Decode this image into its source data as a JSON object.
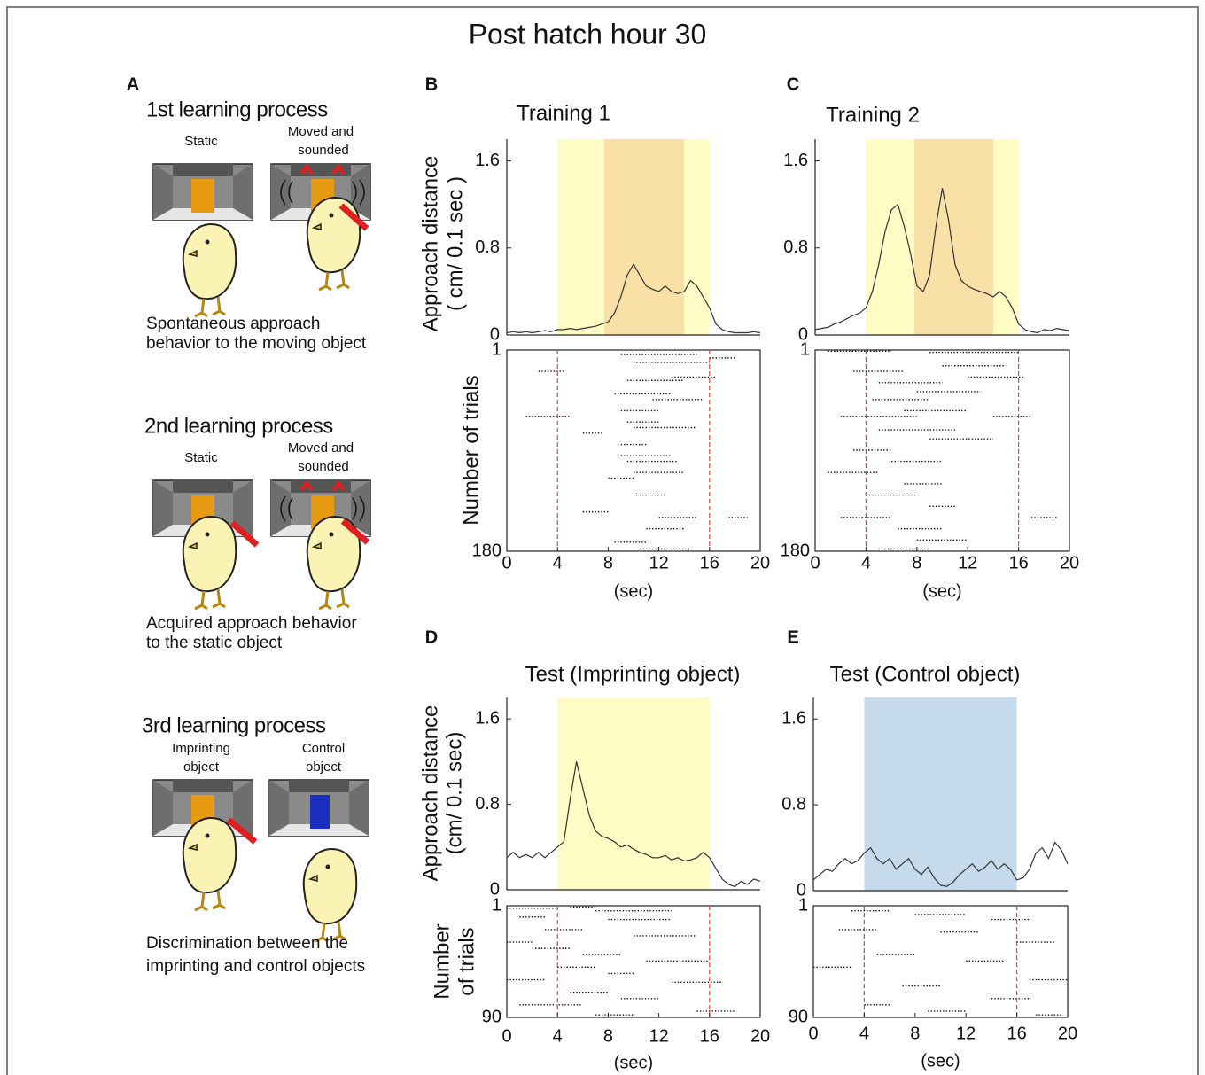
{
  "title": "Post hatch hour 30",
  "panel_a": {
    "label": "A",
    "steps": [
      {
        "title": "1st learning process",
        "left_label": [
          "Static"
        ],
        "right_label": [
          "Moved and",
          "sounded"
        ],
        "caption": [
          "Spontaneous approach",
          "behavior to the moving object"
        ]
      },
      {
        "title": "2nd learning process",
        "left_label": [
          "Static"
        ],
        "right_label": [
          "Moved and",
          "sounded"
        ],
        "caption": [
          "Acquired approach behavior",
          "to the static object"
        ]
      },
      {
        "title": "3rd learning process",
        "left_label": [
          "Imprinting",
          "object"
        ],
        "right_label": [
          "Control",
          "object"
        ],
        "caption": [
          "Discrimination between the",
          "imprinting and control objects"
        ]
      }
    ]
  },
  "chart_data": [
    {
      "type": "line",
      "label": "B",
      "title": "Training 1",
      "ylabel": [
        "Approach distance",
        "( cm/ 0.1 sec )"
      ],
      "x": [
        0,
        0.5,
        1,
        1.5,
        2,
        2.5,
        3,
        3.5,
        4,
        4.5,
        5,
        5.5,
        6,
        6.5,
        7,
        7.5,
        8,
        8.5,
        9,
        9.5,
        10,
        10.5,
        11,
        11.5,
        12,
        12.5,
        13,
        13.5,
        14,
        14.5,
        15,
        15.5,
        16,
        16.5,
        17,
        17.5,
        18,
        18.5,
        19,
        19.5,
        20
      ],
      "values": [
        0.02,
        0.03,
        0.02,
        0.03,
        0.02,
        0.03,
        0.04,
        0.03,
        0.05,
        0.05,
        0.06,
        0.05,
        0.06,
        0.07,
        0.08,
        0.1,
        0.12,
        0.2,
        0.35,
        0.55,
        0.65,
        0.55,
        0.45,
        0.42,
        0.4,
        0.45,
        0.4,
        0.38,
        0.4,
        0.5,
        0.45,
        0.35,
        0.25,
        0.1,
        0.05,
        0.03,
        0.02,
        0.02,
        0.02,
        0.03,
        0.02
      ],
      "color": "#333333",
      "xlim": [
        0,
        20
      ],
      "ylim": [
        0,
        1.8
      ],
      "yticks": [
        0,
        0.8,
        1.6
      ],
      "bands": [
        {
          "x": [
            4,
            16
          ],
          "color": "#fffbc4"
        },
        {
          "x": [
            7.7,
            14
          ],
          "color": "#f9e0a6"
        }
      ],
      "raster": {
        "ylabel": [
          "Number of trials"
        ],
        "ylim": [
          1,
          180
        ],
        "yticks": [
          1,
          180
        ],
        "xticks": [
          0,
          4,
          8,
          12,
          16,
          20
        ],
        "xlabel": "(sec)",
        "markers": [
          4,
          16
        ],
        "marker_color": "#e8403a",
        "events": [
          [
            9,
            15,
            5
          ],
          [
            10,
            16,
            12
          ],
          [
            2.5,
            4.5,
            20
          ],
          [
            9.5,
            14,
            28
          ],
          [
            8.5,
            13,
            40
          ],
          [
            1.5,
            5,
            60
          ],
          [
            9,
            12,
            55
          ],
          [
            10,
            15,
            70
          ],
          [
            9,
            11,
            85
          ],
          [
            6,
            7.5,
            75
          ],
          [
            9.5,
            13.5,
            100
          ],
          [
            8,
            10,
            115
          ],
          [
            10,
            12.5,
            130
          ],
          [
            6,
            8,
            145
          ],
          [
            11,
            14,
            160
          ],
          [
            8.5,
            11,
            172
          ],
          [
            12,
            15,
            150
          ],
          [
            13,
            16.5,
            25
          ],
          [
            16,
            18,
            8
          ],
          [
            17.5,
            19,
            150
          ],
          [
            10.5,
            14.5,
            178
          ],
          [
            9,
            13,
            95
          ],
          [
            10,
            14,
            110
          ],
          [
            11.5,
            15.5,
            45
          ],
          [
            9.5,
            12,
            65
          ]
        ]
      }
    },
    {
      "type": "line",
      "label": "C",
      "title": "Training 2",
      "x": [
        0,
        0.5,
        1,
        1.5,
        2,
        2.5,
        3,
        3.5,
        4,
        4.5,
        5,
        5.5,
        6,
        6.5,
        7,
        7.5,
        8,
        8.5,
        9,
        9.5,
        10,
        10.5,
        11,
        11.5,
        12,
        12.5,
        13,
        13.5,
        14,
        14.5,
        15,
        15.5,
        16,
        16.5,
        17,
        17.5,
        18,
        18.5,
        19,
        19.5,
        20
      ],
      "values": [
        0.05,
        0.06,
        0.07,
        0.1,
        0.12,
        0.15,
        0.18,
        0.2,
        0.25,
        0.4,
        0.65,
        0.95,
        1.15,
        1.2,
        1.0,
        0.75,
        0.45,
        0.4,
        0.55,
        1.0,
        1.35,
        1.05,
        0.65,
        0.5,
        0.45,
        0.42,
        0.4,
        0.38,
        0.35,
        0.4,
        0.35,
        0.25,
        0.1,
        0.05,
        0.03,
        0.02,
        0.05,
        0.04,
        0.06,
        0.05,
        0.04
      ],
      "color": "#333333",
      "xlim": [
        0,
        20
      ],
      "ylim": [
        0,
        1.8
      ],
      "yticks": [
        0,
        0.8,
        1.6
      ],
      "bands": [
        {
          "x": [
            4,
            16
          ],
          "color": "#fffbc4"
        },
        {
          "x": [
            7.8,
            14
          ],
          "color": "#f9e0a6"
        }
      ],
      "raster": {
        "ylim": [
          1,
          180
        ],
        "yticks": [
          1,
          180
        ],
        "xticks": [
          0,
          4,
          8,
          12,
          16,
          20
        ],
        "xlabel": "(sec)",
        "markers": [
          4,
          16
        ],
        "marker_color": "#e8403a",
        "events": [
          [
            1,
            6,
            2
          ],
          [
            9,
            16,
            3
          ],
          [
            3,
            7,
            20
          ],
          [
            5,
            10,
            30
          ],
          [
            8,
            13,
            38
          ],
          [
            4.5,
            9,
            45
          ],
          [
            7,
            12,
            55
          ],
          [
            2,
            8,
            60
          ],
          [
            5,
            11,
            72
          ],
          [
            9,
            14,
            80
          ],
          [
            3,
            6,
            90
          ],
          [
            6,
            10,
            100
          ],
          [
            1,
            5,
            110
          ],
          [
            7,
            10,
            120
          ],
          [
            4,
            8,
            130
          ],
          [
            9,
            11,
            140
          ],
          [
            2,
            6,
            150
          ],
          [
            6.5,
            10,
            160
          ],
          [
            8,
            12,
            170
          ],
          [
            17,
            19,
            150
          ],
          [
            14,
            17,
            60
          ],
          [
            5,
            9,
            178
          ],
          [
            10,
            15,
            15
          ],
          [
            12,
            16.5,
            25
          ]
        ]
      }
    },
    {
      "type": "line",
      "label": "D",
      "title": "Test (Imprinting object)",
      "ylabel": [
        "Approach distance",
        "(cm/ 0.1 sec)"
      ],
      "x": [
        0,
        0.5,
        1,
        1.5,
        2,
        2.5,
        3,
        3.5,
        4,
        4.5,
        5,
        5.5,
        6,
        6.5,
        7,
        7.5,
        8,
        8.5,
        9,
        9.5,
        10,
        10.5,
        11,
        11.5,
        12,
        12.5,
        13,
        13.5,
        14,
        14.5,
        15,
        15.5,
        16,
        16.5,
        17,
        17.5,
        18,
        18.5,
        19,
        19.5,
        20
      ],
      "values": [
        0.3,
        0.35,
        0.3,
        0.33,
        0.3,
        0.35,
        0.3,
        0.35,
        0.4,
        0.45,
        0.85,
        1.2,
        0.95,
        0.7,
        0.55,
        0.5,
        0.48,
        0.45,
        0.4,
        0.42,
        0.38,
        0.35,
        0.33,
        0.3,
        0.3,
        0.32,
        0.28,
        0.3,
        0.27,
        0.28,
        0.3,
        0.35,
        0.3,
        0.2,
        0.1,
        0.05,
        0.03,
        0.08,
        0.05,
        0.1,
        0.08
      ],
      "color": "#333333",
      "xlim": [
        0,
        20
      ],
      "ylim": [
        0,
        1.8
      ],
      "yticks": [
        0,
        0.8,
        1.6
      ],
      "bands": [
        {
          "x": [
            4,
            16
          ],
          "color": "#fffbc4"
        }
      ],
      "raster": {
        "ylabel": [
          "Number",
          "of trials"
        ],
        "ylim": [
          1,
          90
        ],
        "yticks": [
          1,
          90
        ],
        "xticks": [
          0,
          4,
          8,
          12,
          16,
          20
        ],
        "xlabel": "(sec)",
        "markers": [
          4,
          16
        ],
        "marker_color": "#e8403a",
        "events": [
          [
            0,
            4,
            3
          ],
          [
            5,
            7,
            2
          ],
          [
            7,
            13,
            5
          ],
          [
            1,
            3,
            10
          ],
          [
            8,
            13,
            12
          ],
          [
            3,
            6,
            20
          ],
          [
            10,
            15,
            25
          ],
          [
            0,
            2,
            30
          ],
          [
            2,
            5,
            35
          ],
          [
            6,
            9,
            40
          ],
          [
            11,
            16,
            45
          ],
          [
            4,
            7,
            50
          ],
          [
            8,
            10,
            55
          ],
          [
            0,
            3,
            60
          ],
          [
            13,
            17,
            62
          ],
          [
            5,
            8,
            70
          ],
          [
            9,
            12,
            75
          ],
          [
            1,
            6,
            80
          ],
          [
            15,
            18,
            85
          ],
          [
            7,
            10,
            88
          ]
        ]
      }
    },
    {
      "type": "line",
      "label": "E",
      "title": "Test (Control object)",
      "x": [
        0,
        0.5,
        1,
        1.5,
        2,
        2.5,
        3,
        3.5,
        4,
        4.5,
        5,
        5.5,
        6,
        6.5,
        7,
        7.5,
        8,
        8.5,
        9,
        9.5,
        10,
        10.5,
        11,
        11.5,
        12,
        12.5,
        13,
        13.5,
        14,
        14.5,
        15,
        15.5,
        16,
        16.5,
        17,
        17.5,
        18,
        18.5,
        19,
        19.5,
        20
      ],
      "values": [
        0.1,
        0.15,
        0.2,
        0.18,
        0.25,
        0.3,
        0.25,
        0.28,
        0.35,
        0.4,
        0.3,
        0.25,
        0.3,
        0.2,
        0.25,
        0.3,
        0.2,
        0.15,
        0.22,
        0.12,
        0.05,
        0.04,
        0.08,
        0.15,
        0.2,
        0.25,
        0.18,
        0.22,
        0.28,
        0.2,
        0.25,
        0.2,
        0.1,
        0.12,
        0.2,
        0.35,
        0.4,
        0.3,
        0.45,
        0.38,
        0.25
      ],
      "color": "#333333",
      "xlim": [
        0,
        20
      ],
      "ylim": [
        0,
        1.8
      ],
      "yticks": [
        0,
        0.8,
        1.6
      ],
      "bands": [
        {
          "x": [
            4,
            16
          ],
          "color": "#c5dbec"
        }
      ],
      "raster": {
        "ylim": [
          1,
          90
        ],
        "yticks": [
          1,
          90
        ],
        "xticks": [
          0,
          4,
          8,
          12,
          16,
          20
        ],
        "xlabel": "(sec)",
        "markers": [
          4,
          16
        ],
        "marker_color": "#e8403a",
        "events": [
          [
            3,
            6,
            5
          ],
          [
            8,
            12,
            8
          ],
          [
            14,
            17,
            12
          ],
          [
            2,
            5,
            20
          ],
          [
            10,
            13,
            22
          ],
          [
            16,
            19,
            30
          ],
          [
            5,
            8,
            40
          ],
          [
            12,
            15,
            45
          ],
          [
            0,
            3,
            50
          ],
          [
            17,
            20,
            60
          ],
          [
            7,
            10,
            65
          ],
          [
            14,
            17,
            75
          ],
          [
            4,
            6,
            80
          ],
          [
            9,
            12,
            85
          ],
          [
            17.5,
            19.5,
            88
          ]
        ]
      }
    }
  ]
}
